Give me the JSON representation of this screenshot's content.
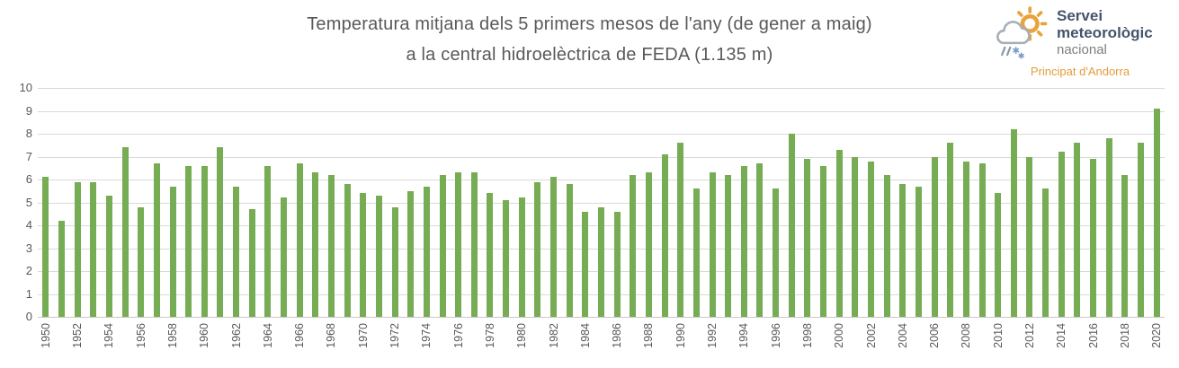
{
  "logo": {
    "name_line1": "Servei",
    "name_line2": "meteorològic",
    "name_line3": "nacional",
    "subtitle": "Principat d'Andorra",
    "icon": "sun-cloud-precipitation-icon",
    "colors": {
      "name": "#44546A",
      "nacional": "#7F7F7F",
      "subtitle": "#E59C3C",
      "sun": "#E8A33D",
      "cloud": "#A6AEB8",
      "rain": "#8B97A6",
      "snow": "#7C9CC4"
    }
  },
  "chart_data": {
    "type": "bar",
    "title_line1": "Temperatura mitjana dels 5 primers mesos de l'any (de gener a maig)",
    "title_line2": "a la central hidroelèctrica de FEDA (1.135 m)",
    "xlabel": "",
    "ylabel": "",
    "grid": true,
    "legend": "none",
    "bar_color": "#76AC53",
    "gridline_color": "#D9D9D9",
    "axis_text_color": "#595959",
    "ylim": [
      0,
      10
    ],
    "yticks": [
      0,
      1,
      2,
      3,
      4,
      5,
      6,
      7,
      8,
      9,
      10
    ],
    "xticks": [
      1950,
      1952,
      1954,
      1956,
      1958,
      1960,
      1962,
      1964,
      1966,
      1968,
      1970,
      1972,
      1974,
      1976,
      1978,
      1980,
      1982,
      1984,
      1986,
      1988,
      1990,
      1992,
      1994,
      1996,
      1998,
      2000,
      2002,
      2004,
      2006,
      2008,
      2010,
      2012,
      2014,
      2016,
      2018,
      2020
    ],
    "x": [
      1950,
      1951,
      1952,
      1953,
      1954,
      1955,
      1956,
      1957,
      1958,
      1959,
      1960,
      1961,
      1962,
      1963,
      1964,
      1965,
      1966,
      1967,
      1968,
      1969,
      1970,
      1971,
      1972,
      1973,
      1974,
      1975,
      1976,
      1977,
      1978,
      1979,
      1980,
      1981,
      1982,
      1983,
      1984,
      1985,
      1986,
      1987,
      1988,
      1989,
      1990,
      1991,
      1992,
      1993,
      1994,
      1995,
      1996,
      1997,
      1998,
      1999,
      2000,
      2001,
      2002,
      2003,
      2004,
      2005,
      2006,
      2007,
      2008,
      2009,
      2010,
      2011,
      2012,
      2013,
      2014,
      2015,
      2016,
      2017,
      2018,
      2019,
      2020
    ],
    "values": [
      6.1,
      4.2,
      5.9,
      5.9,
      5.3,
      7.4,
      4.8,
      6.7,
      5.7,
      6.6,
      6.6,
      7.4,
      5.7,
      4.7,
      6.6,
      5.2,
      6.7,
      6.3,
      6.2,
      5.8,
      5.4,
      5.3,
      4.8,
      5.5,
      5.7,
      6.2,
      6.3,
      6.3,
      5.4,
      5.1,
      5.2,
      5.9,
      6.1,
      5.8,
      4.6,
      4.8,
      4.6,
      6.2,
      6.3,
      7.1,
      7.6,
      5.6,
      6.3,
      6.2,
      6.6,
      6.7,
      5.6,
      8.0,
      6.9,
      6.6,
      7.3,
      7.0,
      6.8,
      6.2,
      5.8,
      5.7,
      7.0,
      7.6,
      6.8,
      6.7,
      5.4,
      8.2,
      7.0,
      5.6,
      7.2,
      7.6,
      6.9,
      7.8,
      6.2,
      7.6,
      9.1
    ]
  }
}
